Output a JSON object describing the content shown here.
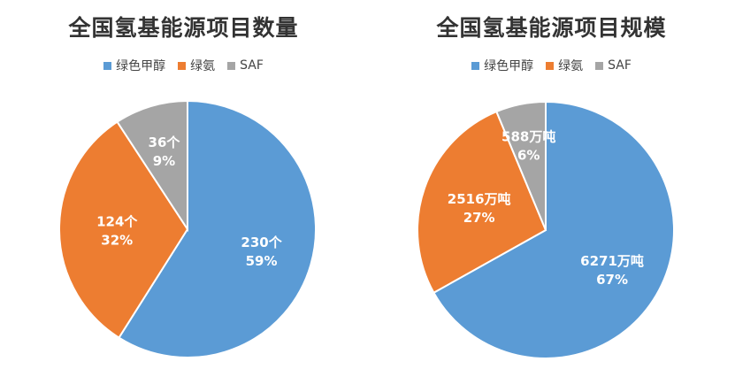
{
  "colors": {
    "green_methanol": "#5B9BD5",
    "green_ammonia": "#ED7D31",
    "saf": "#A5A5A5"
  },
  "chart_data": [
    {
      "type": "pie",
      "title": "全国氢基能源项目数量",
      "legend": [
        "绿色甲醇",
        "绿氨",
        "SAF"
      ],
      "legend_position": "top",
      "slices": [
        {
          "name": "绿色甲醇",
          "value": 230,
          "value_label": "230个",
          "percent_label": "59%"
        },
        {
          "name": "绿氨",
          "value": 124,
          "value_label": "124个",
          "percent_label": "32%"
        },
        {
          "name": "SAF",
          "value": 36,
          "value_label": "36个",
          "percent_label": "9%"
        }
      ]
    },
    {
      "type": "pie",
      "title": "全国氢基能源项目规模",
      "legend": [
        "绿色甲醇",
        "绿氨",
        "SAF"
      ],
      "legend_position": "top",
      "slices": [
        {
          "name": "绿色甲醇",
          "value": 6271,
          "value_label": "6271万吨",
          "percent_label": "67%"
        },
        {
          "name": "绿氨",
          "value": 2516,
          "value_label": "2516万吨",
          "percent_label": "27%"
        },
        {
          "name": "SAF",
          "value": 588,
          "value_label": "588万吨",
          "percent_label": "6%"
        }
      ]
    }
  ]
}
